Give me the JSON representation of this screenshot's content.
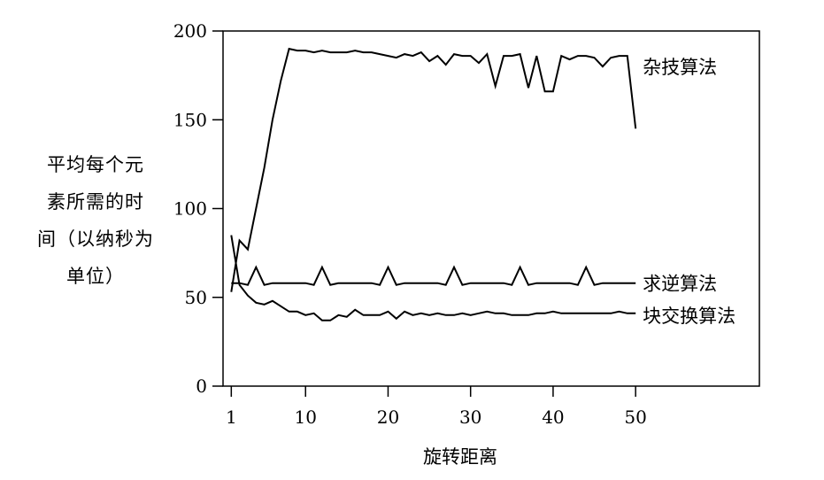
{
  "chart_data": {
    "type": "line",
    "xlabel": "旋转距离",
    "ylabel_lines": [
      "平均每个元",
      "素所需的时",
      "间（以纳秒为",
      "单位）"
    ],
    "xlim": [
      0,
      65
    ],
    "ylim": [
      0,
      200
    ],
    "xticks": [
      1,
      10,
      20,
      30,
      40,
      50
    ],
    "yticks": [
      0,
      50,
      100,
      150,
      200
    ],
    "grid": false,
    "legend": "inline labels at line ends",
    "line_color": "#000000",
    "series": [
      {
        "name": "杂技算法",
        "x": [
          1,
          2,
          3,
          4,
          5,
          6,
          7,
          8,
          9,
          10,
          11,
          12,
          13,
          14,
          15,
          16,
          17,
          18,
          19,
          20,
          21,
          22,
          23,
          24,
          25,
          26,
          27,
          28,
          29,
          30,
          31,
          32,
          33,
          34,
          35,
          36,
          37,
          38,
          39,
          40,
          41,
          42,
          43,
          44,
          45,
          46,
          47,
          48,
          49,
          50
        ],
        "values": [
          53,
          82,
          77,
          100,
          123,
          150,
          172,
          190,
          189,
          189,
          188,
          189,
          188,
          188,
          188,
          189,
          188,
          188,
          187,
          186,
          185,
          187,
          186,
          188,
          183,
          186,
          181,
          187,
          186,
          186,
          182,
          187,
          169,
          186,
          186,
          187,
          168,
          186,
          166,
          166,
          186,
          184,
          186,
          186,
          185,
          180,
          185,
          186,
          186,
          145
        ]
      },
      {
        "name": "求逆算法",
        "x": [
          1,
          2,
          3,
          4,
          5,
          6,
          7,
          8,
          9,
          10,
          11,
          12,
          13,
          14,
          15,
          16,
          17,
          18,
          19,
          20,
          21,
          22,
          23,
          24,
          25,
          26,
          27,
          28,
          29,
          30,
          31,
          32,
          33,
          34,
          35,
          36,
          37,
          38,
          39,
          40,
          41,
          42,
          43,
          44,
          45,
          46,
          47,
          48,
          49,
          50
        ],
        "values": [
          58,
          58,
          57,
          67,
          57,
          58,
          58,
          58,
          58,
          58,
          57,
          67,
          57,
          58,
          58,
          58,
          58,
          58,
          57,
          67,
          57,
          58,
          58,
          58,
          58,
          58,
          57,
          67,
          57,
          58,
          58,
          58,
          58,
          58,
          57,
          67,
          57,
          58,
          58,
          58,
          58,
          58,
          57,
          67,
          57,
          58,
          58,
          58,
          58,
          58
        ]
      },
      {
        "name": "块交换算法",
        "x": [
          1,
          2,
          3,
          4,
          5,
          6,
          7,
          8,
          9,
          10,
          11,
          12,
          13,
          14,
          15,
          16,
          17,
          18,
          19,
          20,
          21,
          22,
          23,
          24,
          25,
          26,
          27,
          28,
          29,
          30,
          31,
          32,
          33,
          34,
          35,
          36,
          37,
          38,
          39,
          40,
          41,
          42,
          43,
          44,
          45,
          46,
          47,
          48,
          49,
          50
        ],
        "values": [
          85,
          57,
          51,
          47,
          46,
          48,
          45,
          42,
          42,
          40,
          41,
          37,
          37,
          40,
          39,
          43,
          40,
          40,
          40,
          42,
          38,
          42,
          40,
          41,
          40,
          41,
          40,
          40,
          41,
          40,
          41,
          42,
          41,
          41,
          40,
          40,
          40,
          41,
          41,
          42,
          41,
          41,
          41,
          41,
          41,
          41,
          41,
          42,
          41,
          41
        ]
      }
    ]
  }
}
